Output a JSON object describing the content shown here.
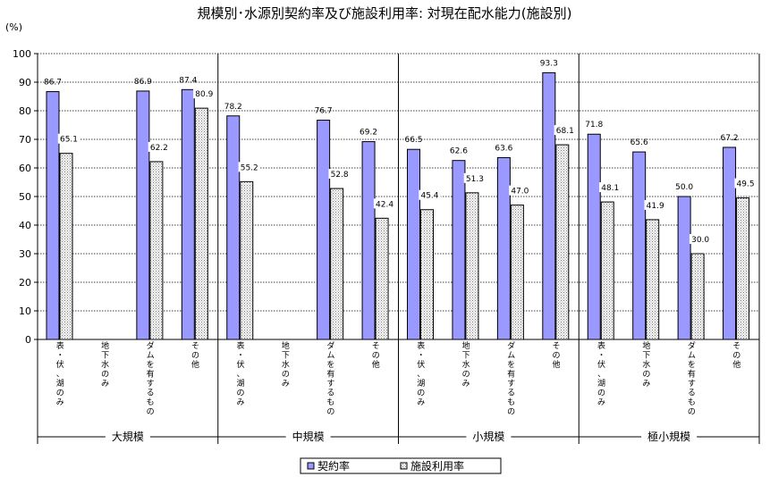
{
  "chart_data": {
    "type": "bar",
    "title": "規模別･水源別契約率及び施設利用率: 対現在配水能力(施設別)",
    "yunit": "(%)",
    "ylim": [
      0,
      100
    ],
    "yticks": [
      0,
      10,
      20,
      30,
      40,
      50,
      60,
      70,
      80,
      90,
      100
    ],
    "ytick_labels": [
      "0",
      "10",
      "20",
      "30",
      "40",
      "50",
      "60",
      "70",
      "80",
      "90",
      "100"
    ],
    "grid": true,
    "legend_position": "bottom-center",
    "groups": [
      {
        "label": "大規模",
        "categories": [
          {
            "label": "表\n・\n伏\n、\n湖\nの\nみ",
            "values": [
              86.7,
              65.1
            ],
            "labels": [
              "86.7",
              "65.1"
            ]
          },
          {
            "label": "地\n下\n水\nの\nみ",
            "values": [
              null,
              null
            ],
            "labels": [
              null,
              null
            ]
          },
          {
            "label": "ダ\nム\nを\n有\nす\nる\nも\nの",
            "values": [
              86.9,
              62.2
            ],
            "labels": [
              "86.9",
              "62.2"
            ]
          },
          {
            "label": "そ\nの\n他",
            "values": [
              87.4,
              80.9
            ],
            "labels": [
              "87.4",
              "80.9"
            ]
          }
        ]
      },
      {
        "label": "中規模",
        "categories": [
          {
            "label": "表\n・\n伏\n、\n湖\nの\nみ",
            "values": [
              78.2,
              55.2
            ],
            "labels": [
              "78.2",
              "55.2"
            ]
          },
          {
            "label": "地\n下\n水\nの\nみ",
            "values": [
              null,
              null
            ],
            "labels": [
              null,
              null
            ]
          },
          {
            "label": "ダ\nム\nを\n有\nす\nる\nも\nの",
            "values": [
              76.7,
              52.8
            ],
            "labels": [
              "76.7",
              "52.8"
            ]
          },
          {
            "label": "そ\nの\n他",
            "values": [
              69.2,
              42.4
            ],
            "labels": [
              "69.2",
              "42.4"
            ]
          }
        ]
      },
      {
        "label": "小規模",
        "categories": [
          {
            "label": "表\n・\n伏\n、\n湖\nの\nみ",
            "values": [
              66.5,
              45.4
            ],
            "labels": [
              "66.5",
              "45.4"
            ]
          },
          {
            "label": "地\n下\n水\nの\nみ",
            "values": [
              62.6,
              51.3
            ],
            "labels": [
              "62.6",
              "51.3"
            ]
          },
          {
            "label": "ダ\nム\nを\n有\nす\nる\nも\nの",
            "values": [
              63.6,
              47.0
            ],
            "labels": [
              "63.6",
              "47.0"
            ]
          },
          {
            "label": "そ\nの\n他",
            "values": [
              93.3,
              68.1
            ],
            "labels": [
              "93.3",
              "68.1"
            ]
          }
        ]
      },
      {
        "label": "極小規模",
        "categories": [
          {
            "label": "表\n・\n伏\n、\n湖\nの\nみ",
            "values": [
              71.8,
              48.1
            ],
            "labels": [
              "71.8",
              "48.1"
            ]
          },
          {
            "label": "地\n下\n水\nの\nみ",
            "values": [
              65.6,
              41.9
            ],
            "labels": [
              "65.6",
              "41.9"
            ]
          },
          {
            "label": "ダ\nム\nを\n有\nす\nる\nも\nの",
            "values": [
              50.0,
              30.0
            ],
            "labels": [
              "50.0",
              "30.0"
            ]
          },
          {
            "label": "そ\nの\n他",
            "values": [
              67.2,
              49.5
            ],
            "labels": [
              "67.2",
              "49.5"
            ]
          }
        ]
      }
    ],
    "series": [
      {
        "name": "契約率",
        "color": "#9999ff",
        "pattern": "solid"
      },
      {
        "name": "施設利用率",
        "color": "#cccccc",
        "pattern": "dotted"
      }
    ]
  }
}
